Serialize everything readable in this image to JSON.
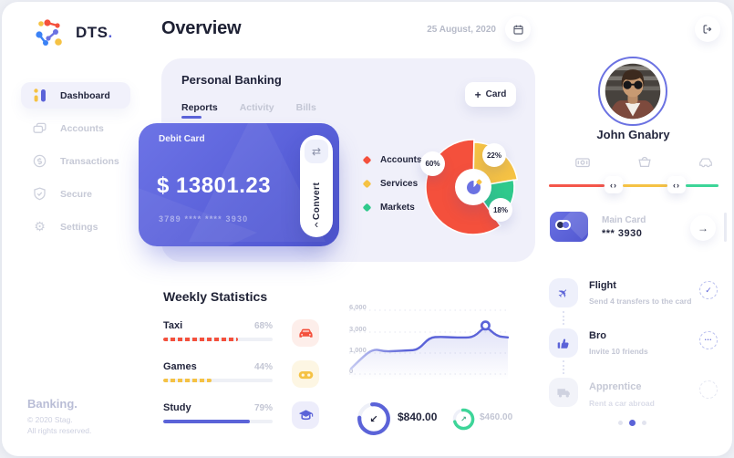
{
  "app": {
    "logo_text": "DTS",
    "logo_dot": ".",
    "page_title": "Overview",
    "date": "25 August, 2020"
  },
  "glyphs": {
    "plus": "+",
    "swap": "⇄",
    "chevron": "‹",
    "code_arrows": "‹›",
    "arrow_right": "→",
    "check": "✓",
    "ellipsis": "•••",
    "plane": "✈",
    "dollar": "$"
  },
  "colors": {
    "accent": "#5b63d8",
    "red": "#f4503c",
    "yellow": "#f5c244",
    "green": "#2fc98c"
  },
  "sidebar": {
    "items": [
      {
        "label": "Dashboard",
        "active": true
      },
      {
        "label": "Accounts",
        "active": false
      },
      {
        "label": "Transactions",
        "active": false
      },
      {
        "label": "Secure",
        "active": false
      },
      {
        "label": "Settings",
        "active": false
      }
    ],
    "footer": {
      "brand": "Banking.",
      "line1": "© 2020 Stag.",
      "line2": "All rights reserved."
    }
  },
  "personal_banking": {
    "title": "Personal Banking",
    "add_card_label": "Card",
    "tabs": [
      {
        "label": "Reports",
        "active": true
      },
      {
        "label": "Activity",
        "active": false
      },
      {
        "label": "Bills",
        "active": false
      }
    ],
    "debit_card": {
      "label": "Debit Card",
      "balance": "$ 13801.23",
      "number": "3789 **** **** 3930",
      "convert_label": "Convert"
    }
  },
  "chart_data": [
    {
      "type": "pie",
      "title": "Personal Banking spending breakdown",
      "labels": [
        "Accounts",
        "Services",
        "Markets"
      ],
      "values": [
        60,
        22,
        18
      ],
      "value_labels": [
        "60%",
        "22%",
        "18%"
      ],
      "colors": [
        "#f4503c",
        "#f5c244",
        "#2fc98c"
      ],
      "legend_position": "left",
      "unit": "%"
    },
    {
      "type": "line",
      "title": "Weekly statistics trend",
      "color": "#5b63d8",
      "grid": "dotted horizontal",
      "yticks": [
        {
          "label": "6,000",
          "value": 6000
        },
        {
          "label": "3,000",
          "value": 3000
        },
        {
          "label": "1,000",
          "value": 1000
        },
        {
          "label": "0",
          "value": 0
        }
      ],
      "values": [
        260,
        800,
        1400,
        1150,
        1200,
        1250,
        1300,
        2500,
        2550,
        2500,
        2480,
        2520,
        3900,
        2600,
        2500
      ],
      "highlight": {
        "index": 12,
        "value": 3900
      }
    },
    {
      "type": "bar",
      "title": "Weekly Statistics",
      "categories": [
        "Taxi",
        "Games",
        "Study"
      ],
      "values": [
        68,
        44,
        79
      ],
      "value_labels": [
        "68%",
        "44%",
        "79%"
      ],
      "colors": [
        "#f4503c",
        "#f5c244",
        "#5b63d8"
      ],
      "unit": "%",
      "xlim": [
        0,
        100
      ]
    }
  ],
  "profile": {
    "name": "John Gnabry"
  },
  "milestone_track": {
    "icons": [
      "cash-card-icon",
      "basket-icon",
      "car-icon"
    ],
    "segment_colors": [
      "#f4564a",
      "#f5c244",
      "#3dd598"
    ]
  },
  "main_card": {
    "title": "Main Card",
    "number": "*** 3930"
  },
  "weekly": {
    "title": "Weekly Statistics"
  },
  "stats": [
    {
      "amount": "$840.00",
      "arrow": "↙",
      "color": "#5b63d8",
      "progress": 78
    },
    {
      "amount": "$460.00",
      "arrow": "↗",
      "color": "#3dd598",
      "progress": 72
    }
  ],
  "achievements": {
    "items": [
      {
        "title": "Flight",
        "subtitle": "Send 4 transfers to the card",
        "icon": "plane-icon",
        "status": "complete"
      },
      {
        "title": "Bro",
        "subtitle": "Invite 10 friends",
        "icon": "thumbs-up-icon",
        "status": "in-progress"
      },
      {
        "title": "Apprentice",
        "subtitle": "Rent a car abroad",
        "icon": "truck-icon",
        "status": "locked"
      }
    ],
    "pagination": {
      "count": 3,
      "active_index": 1
    }
  }
}
